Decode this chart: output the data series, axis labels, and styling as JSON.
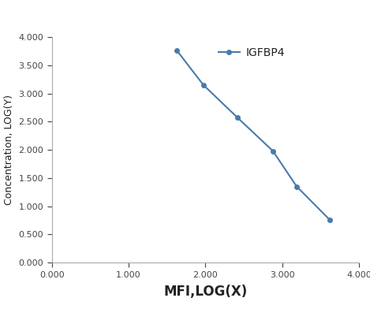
{
  "x": [
    1.63,
    1.975,
    2.42,
    2.88,
    3.19,
    3.62
  ],
  "y": [
    3.76,
    3.15,
    2.57,
    1.98,
    1.35,
    0.76
  ],
  "line_color": "#4a7aab",
  "marker": "o",
  "marker_size": 4,
  "legend_label": "IGFBP4",
  "xlabel": "MFI,LOG(X)",
  "ylabel": "Concentration, LOG(Y)",
  "xlim": [
    0.0,
    4.0
  ],
  "ylim": [
    0.0,
    4.0
  ],
  "xticks": [
    0.0,
    1.0,
    2.0,
    3.0,
    4.0
  ],
  "yticks": [
    0.0,
    0.5,
    1.0,
    1.5,
    2.0,
    2.5,
    3.0,
    3.5,
    4.0
  ],
  "xlabel_fontsize": 12,
  "ylabel_fontsize": 9,
  "tick_fontsize": 8,
  "legend_fontsize": 10,
  "background_color": "#ffffff",
  "spine_color": "#aaaaaa",
  "tick_color": "#444444"
}
